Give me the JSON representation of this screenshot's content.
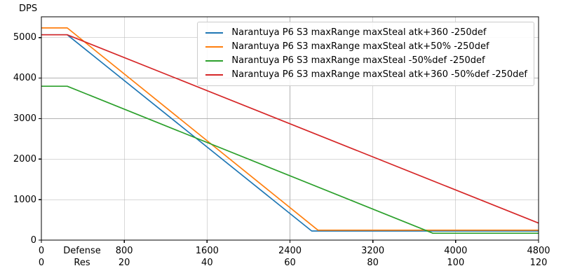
{
  "figure": {
    "kind": "line-chart-screenshot"
  },
  "axis_titles": {
    "y": "DPS",
    "x_line1": "Defense",
    "x_line2": "Res"
  },
  "chart_data": {
    "type": "line",
    "title": "",
    "xlabel": "Defense (top row) / Res (bottom row)",
    "ylabel": "DPS",
    "xlim": [
      0,
      4800
    ],
    "ylim": [
      0,
      5515
    ],
    "grid": true,
    "legend_position": "upper right",
    "x_ticks": [
      {
        "x": 0,
        "defense": "0",
        "res": "0"
      },
      {
        "x": 800,
        "defense": "800",
        "res": "20"
      },
      {
        "x": 1600,
        "defense": "1600",
        "res": "40"
      },
      {
        "x": 2400,
        "defense": "2400",
        "res": "60"
      },
      {
        "x": 3200,
        "defense": "3200",
        "res": "80"
      },
      {
        "x": 4000,
        "defense": "4000",
        "res": "100"
      },
      {
        "x": 4800,
        "defense": "4800",
        "res": "120"
      }
    ],
    "y_ticks": [
      {
        "y": 0,
        "label": "0"
      },
      {
        "y": 1000,
        "label": "1000"
      },
      {
        "y": 2000,
        "label": "2000"
      },
      {
        "y": 3000,
        "label": "3000"
      },
      {
        "y": 4000,
        "label": "4000"
      },
      {
        "y": 5000,
        "label": "5000"
      }
    ],
    "series": [
      {
        "name": "Narantuya P6 S3 maxRange maxSteal atk+360 -250def",
        "color": "#1f77b4",
        "points": [
          [
            0,
            5070
          ],
          [
            250,
            5070
          ],
          [
            2610,
            225
          ],
          [
            4800,
            225
          ]
        ]
      },
      {
        "name": "Narantuya P6 S3 maxRange maxSteal atk+50% -250def",
        "color": "#ff7f0e",
        "points": [
          [
            0,
            5240
          ],
          [
            250,
            5240
          ],
          [
            2670,
            245
          ],
          [
            4800,
            245
          ]
        ]
      },
      {
        "name": "Narantuya P6 S3 maxRange maxSteal -50%def -250def",
        "color": "#2ca02c",
        "points": [
          [
            0,
            3800
          ],
          [
            250,
            3800
          ],
          [
            3780,
            170
          ],
          [
            4800,
            170
          ]
        ]
      },
      {
        "name": "Narantuya P6 S3 maxRange maxSteal atk+360 -50%def -250def",
        "color": "#d62728",
        "points": [
          [
            0,
            5070
          ],
          [
            250,
            5070
          ],
          [
            4800,
            420
          ]
        ]
      }
    ],
    "colors": {
      "grid": "#b2b2b2",
      "spine": "#000000",
      "tick": "#000000",
      "legend_border": "#cccccc"
    }
  }
}
